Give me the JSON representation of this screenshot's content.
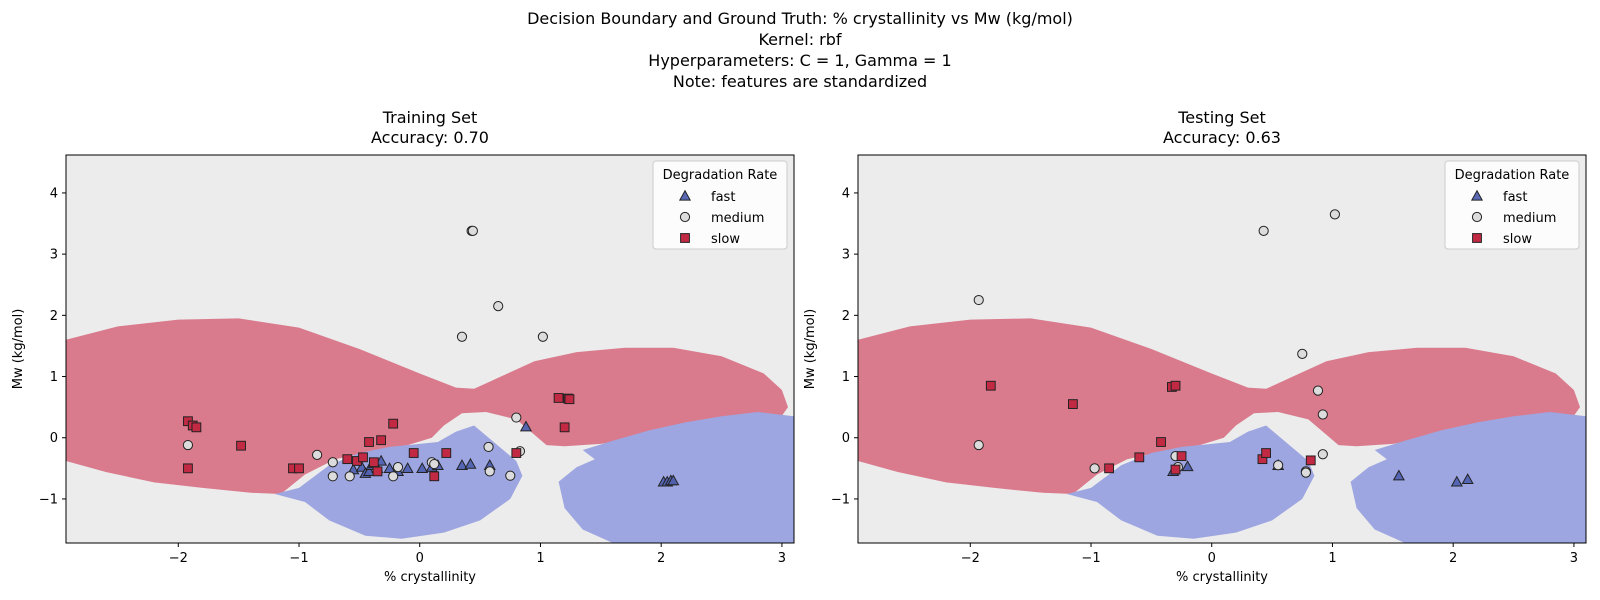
{
  "figure": {
    "suptitle": [
      "Decision Boundary and Ground Truth: % crystallinity vs Mw (kg/mol)",
      "Kernel: rbf",
      "Hyperparameters: C = 1, Gamma = 1",
      "Note: features are standardized"
    ]
  },
  "colors": {
    "background_region": "#ececec",
    "slow_region": "#d97b8d",
    "fast_region": "#9da6e0",
    "fast_marker": "#5061b0",
    "medium_marker": "#dcdcdc",
    "slow_marker": "#c22a44",
    "marker_edge": "#222222"
  },
  "chart_data": [
    {
      "type": "scatter",
      "title": "Training Set",
      "subtitle": "Accuracy: 0.70",
      "xlabel": "% crystallinity",
      "ylabel": "Mw (kg/mol)",
      "xlim": [
        -2.93,
        3.1
      ],
      "ylim": [
        -1.72,
        4.62
      ],
      "xticks": [
        -2,
        -1,
        0,
        1,
        2,
        3
      ],
      "yticks": [
        -1,
        0,
        1,
        2,
        3,
        4
      ],
      "legend": {
        "title": "Degradation Rate",
        "position": "top-right",
        "entries": [
          "fast",
          "medium",
          "slow"
        ]
      },
      "series": [
        {
          "name": "fast",
          "marker": "triangle",
          "points": [
            [
              -0.55,
              -0.52
            ],
            [
              -0.48,
              -0.48
            ],
            [
              -0.45,
              -0.58
            ],
            [
              -0.42,
              -0.55
            ],
            [
              -0.4,
              -0.45
            ],
            [
              -0.38,
              -0.42
            ],
            [
              -0.35,
              -0.5
            ],
            [
              -0.32,
              -0.38
            ],
            [
              -0.25,
              -0.5
            ],
            [
              -0.18,
              -0.55
            ],
            [
              -0.1,
              -0.5
            ],
            [
              0.02,
              -0.5
            ],
            [
              0.1,
              -0.48
            ],
            [
              0.15,
              -0.45
            ],
            [
              0.35,
              -0.45
            ],
            [
              0.42,
              -0.43
            ],
            [
              0.58,
              -0.45
            ],
            [
              0.88,
              0.18
            ],
            [
              2.02,
              -0.72
            ],
            [
              2.05,
              -0.72
            ],
            [
              2.08,
              -0.7
            ],
            [
              2.1,
              -0.7
            ]
          ]
        },
        {
          "name": "medium",
          "marker": "circle",
          "points": [
            [
              -1.92,
              -0.12
            ],
            [
              -0.85,
              -0.28
            ],
            [
              -0.72,
              -0.4
            ],
            [
              -0.72,
              -0.63
            ],
            [
              -0.58,
              -0.63
            ],
            [
              -0.22,
              -0.63
            ],
            [
              -0.18,
              -0.48
            ],
            [
              0.1,
              -0.4
            ],
            [
              0.12,
              -0.43
            ],
            [
              0.43,
              3.38
            ],
            [
              0.44,
              3.38
            ],
            [
              0.35,
              1.65
            ],
            [
              0.65,
              2.15
            ],
            [
              1.02,
              1.65
            ],
            [
              0.57,
              -0.15
            ],
            [
              0.58,
              -0.55
            ],
            [
              0.8,
              0.33
            ],
            [
              0.83,
              -0.22
            ],
            [
              0.75,
              -0.62
            ]
          ]
        },
        {
          "name": "slow",
          "marker": "square",
          "points": [
            [
              -1.92,
              0.27
            ],
            [
              -1.88,
              0.2
            ],
            [
              -1.85,
              0.17
            ],
            [
              -1.92,
              -0.5
            ],
            [
              -1.48,
              -0.13
            ],
            [
              -1.05,
              -0.5
            ],
            [
              -1.0,
              -0.5
            ],
            [
              -0.6,
              -0.35
            ],
            [
              -0.52,
              -0.38
            ],
            [
              -0.47,
              -0.32
            ],
            [
              -0.42,
              -0.07
            ],
            [
              -0.38,
              -0.4
            ],
            [
              -0.35,
              -0.55
            ],
            [
              -0.32,
              -0.04
            ],
            [
              -0.22,
              0.23
            ],
            [
              -0.05,
              -0.25
            ],
            [
              0.12,
              -0.63
            ],
            [
              0.22,
              -0.25
            ],
            [
              0.8,
              -0.25
            ],
            [
              1.15,
              0.65
            ],
            [
              1.23,
              0.64
            ],
            [
              1.24,
              0.63
            ],
            [
              1.2,
              0.17
            ]
          ]
        }
      ]
    },
    {
      "type": "scatter",
      "title": "Testing Set",
      "subtitle": "Accuracy: 0.63",
      "xlabel": "% crystallinity",
      "ylabel": "Mw (kg/mol)",
      "xlim": [
        -2.93,
        3.1
      ],
      "ylim": [
        -1.72,
        4.62
      ],
      "xticks": [
        -2,
        -1,
        0,
        1,
        2,
        3
      ],
      "yticks": [
        -1,
        0,
        1,
        2,
        3,
        4
      ],
      "legend": {
        "title": "Degradation Rate",
        "position": "top-right",
        "entries": [
          "fast",
          "medium",
          "slow"
        ]
      },
      "series": [
        {
          "name": "fast",
          "marker": "triangle",
          "points": [
            [
              -0.32,
              -0.55
            ],
            [
              -0.2,
              -0.47
            ],
            [
              0.55,
              -0.45
            ],
            [
              1.55,
              -0.62
            ],
            [
              2.03,
              -0.72
            ],
            [
              2.12,
              -0.68
            ]
          ]
        },
        {
          "name": "medium",
          "marker": "circle",
          "points": [
            [
              -1.93,
              2.25
            ],
            [
              -1.93,
              -0.12
            ],
            [
              -0.97,
              -0.5
            ],
            [
              -0.3,
              -0.3
            ],
            [
              -0.28,
              -0.48
            ],
            [
              0.43,
              3.38
            ],
            [
              1.02,
              3.65
            ],
            [
              0.75,
              1.37
            ],
            [
              0.88,
              0.77
            ],
            [
              0.92,
              0.38
            ],
            [
              0.92,
              -0.27
            ],
            [
              0.55,
              -0.45
            ],
            [
              0.78,
              -0.55
            ],
            [
              0.78,
              -0.57
            ]
          ]
        },
        {
          "name": "slow",
          "marker": "square",
          "points": [
            [
              -1.83,
              0.85
            ],
            [
              -1.15,
              0.55
            ],
            [
              -0.85,
              -0.5
            ],
            [
              -0.6,
              -0.32
            ],
            [
              -0.42,
              -0.07
            ],
            [
              -0.33,
              0.83
            ],
            [
              -0.3,
              0.85
            ],
            [
              -0.3,
              -0.52
            ],
            [
              -0.25,
              -0.3
            ],
            [
              0.42,
              -0.35
            ],
            [
              0.45,
              -0.25
            ],
            [
              0.82,
              -0.37
            ]
          ]
        }
      ]
    }
  ]
}
